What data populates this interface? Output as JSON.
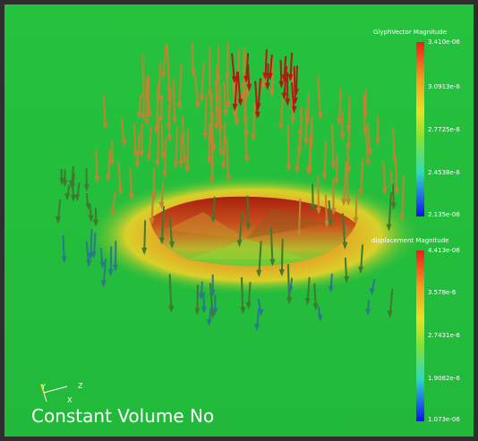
{
  "scene_label": "Constant Volume No",
  "colors": {
    "background": "#24bd3c",
    "arrow_red": "#b21a12",
    "arrow_orange": "#c08430",
    "arrow_green": "#3f7a2e",
    "arrow_blue": "#2a7a8c"
  },
  "scalar_bars": [
    {
      "title": "GlyphVector Magnitude",
      "ticks": [
        "3.410e-06",
        "3.0913e-6",
        "2.7725e-6",
        "2.4538e-6",
        "2.135e-06"
      ]
    },
    {
      "title": "displacement Magnitude",
      "ticks": [
        "4.413e-06",
        "3.578e-6",
        "2.7431e-6",
        "1.9082e-6",
        "1.073e-06"
      ]
    }
  ],
  "orientation_axes": {
    "y_label": "Y",
    "z_label": "Z",
    "x_label": "X"
  }
}
